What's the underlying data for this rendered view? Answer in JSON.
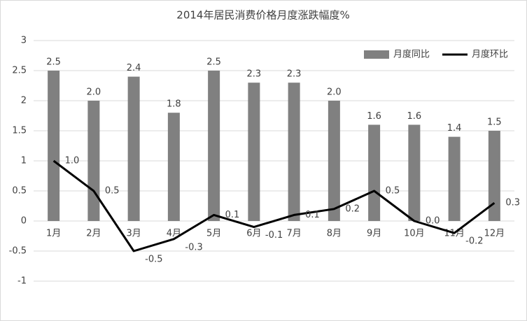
{
  "chart_data": {
    "type": "combo",
    "title": "2014年居民消费价格月度涨跌幅度%",
    "categories": [
      "1月",
      "2月",
      "3月",
      "4月",
      "5月",
      "6月",
      "7月",
      "8月",
      "9月",
      "10月",
      "11月",
      "12月"
    ],
    "series": [
      {
        "name": "月度同比",
        "type": "bar",
        "color": "#808080",
        "values": [
          2.5,
          2.0,
          2.4,
          1.8,
          2.5,
          2.3,
          2.3,
          2.0,
          1.6,
          1.6,
          1.4,
          1.5
        ],
        "value_labels": [
          "2.5",
          "2.0",
          "2.4",
          "1.8",
          "2.5",
          "2.3",
          "2.3",
          "2.0",
          "1.6",
          "1.6",
          "1.4",
          "1.5"
        ]
      },
      {
        "name": "月度环比",
        "type": "line",
        "color": "#000000",
        "values": [
          1.0,
          0.5,
          -0.5,
          -0.3,
          0.1,
          -0.1,
          0.1,
          0.2,
          0.5,
          0.0,
          -0.2,
          0.3
        ],
        "value_labels": [
          "1.0",
          "0.5",
          "-0.5",
          "-0.3",
          "0.1",
          "-0.1",
          "0.1",
          "0.2",
          "0.5",
          "0.0",
          "-0.2",
          "0.3"
        ]
      }
    ],
    "ylim": [
      -1,
      3
    ],
    "yticks": [
      -1,
      -0.5,
      0,
      0.5,
      1,
      1.5,
      2,
      2.5,
      3
    ],
    "grid": true,
    "legend": "top-right"
  }
}
